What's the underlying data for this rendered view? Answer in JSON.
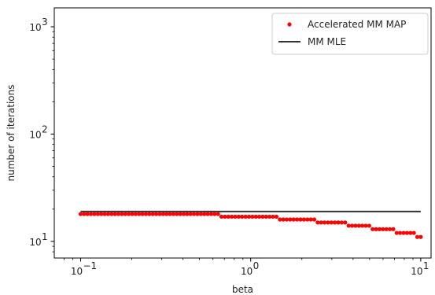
{
  "chart_data": {
    "type": "line",
    "title": "",
    "xlabel": "beta",
    "ylabel": "number of iterations",
    "xscale": "log",
    "yscale": "log",
    "xlim": [
      0.07,
      11.5
    ],
    "ylim": [
      7.0,
      1500
    ],
    "x_ticks": [
      {
        "value": 0.1,
        "base": "10",
        "exp": "−1"
      },
      {
        "value": 1,
        "base": "10",
        "exp": "0"
      },
      {
        "value": 10,
        "base": "10",
        "exp": "1"
      }
    ],
    "y_ticks": [
      {
        "value": 10,
        "base": "10",
        "exp": "1"
      },
      {
        "value": 100,
        "base": "10",
        "exp": "2"
      },
      {
        "value": 1000,
        "base": "10",
        "exp": "3"
      }
    ],
    "grid": false,
    "legend_position": "top-right",
    "series": [
      {
        "name": "Accelerated MM MAP",
        "style": "scatter",
        "color": "#ff0000",
        "n_points": 100,
        "x_range": [
          0.1,
          10
        ],
        "y_steps": [
          {
            "x_from": 0.1,
            "x_to": 0.65,
            "y": 18
          },
          {
            "x_from": 0.65,
            "x_to": 1.45,
            "y": 17
          },
          {
            "x_from": 1.45,
            "x_to": 2.4,
            "y": 16
          },
          {
            "x_from": 2.4,
            "x_to": 3.6,
            "y": 15
          },
          {
            "x_from": 3.6,
            "x_to": 5.2,
            "y": 14
          },
          {
            "x_from": 5.2,
            "x_to": 7.0,
            "y": 13
          },
          {
            "x_from": 7.0,
            "x_to": 9.5,
            "y": 12
          },
          {
            "x_from": 9.5,
            "x_to": 10.0,
            "y": 11
          }
        ]
      },
      {
        "name": "MM MLE",
        "style": "line",
        "color": "#333333",
        "x": [
          0.1,
          10
        ],
        "y": [
          19,
          19
        ]
      }
    ]
  }
}
